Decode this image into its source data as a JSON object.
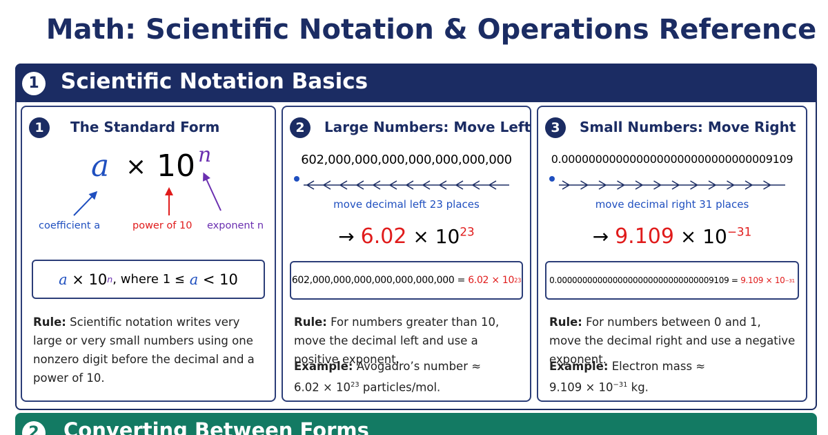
{
  "title": "Math: Scientific Notation & Operations Reference",
  "sections": [
    {
      "number": "1",
      "title": "Scientific Notation Basics",
      "cards": [
        {
          "number": "1",
          "title": "The Standard Form",
          "formula": {
            "coefficient": "a",
            "times": "×",
            "base": "10",
            "exponent": "n"
          },
          "labels": [
            "coefficient a",
            "power of 10",
            "exponent n"
          ],
          "box": {
            "coefficient": "a",
            "times_base": "× 10",
            "exponent": "n",
            "condition_start": ", where 1 ≤",
            "variable": "a",
            "condition_end": "< 10"
          },
          "rule_label": "Rule:",
          "rule": "Scientific notation writes very large or very small numbers using one nonzero digit before the decimal and a power of 10."
        },
        {
          "number": "2",
          "title": "Large Numbers: Move Left",
          "number_text": "602,000,000,000,000,000,000,000",
          "move": "move decimal left 23 places",
          "result": {
            "arrow": "→",
            "mantissa": "6.02",
            "times_base": "× 10",
            "exponent": "23"
          },
          "box": {
            "left": "602,000,000,000,000,000,000,000 =",
            "mantissa": "6.02",
            "times_base": "× 10",
            "exponent": "23"
          },
          "rule_label": "Rule:",
          "rule": "For numbers greater than 10, move the decimal left and use a positive exponent.",
          "example_label": "Example:",
          "example": {
            "text": "Avogadro’s number ≈",
            "mantissa": "6.02 × 10",
            "exponent": "23",
            "unit": "particles/mol."
          }
        },
        {
          "number": "3",
          "title": "Small Numbers: Move Right",
          "number_text": "0.0000000000000000000000000000009109",
          "move": "move decimal right 31 places",
          "result": {
            "arrow": "→",
            "mantissa": "9.109",
            "times_base": "× 10",
            "exponent": "−31"
          },
          "box": {
            "left": "0.0000000000000000000000000000009109 =",
            "mantissa": "9.109",
            "times_base": "× 10",
            "exponent": "−31"
          },
          "rule_label": "Rule:",
          "rule": "For numbers between 0 and 1, move the decimal right and use a negative exponent.",
          "example_label": "Example:",
          "example": {
            "text": "Electron mass ≈",
            "mantissa": "9.109 × 10",
            "exponent": "−31",
            "unit": "kg."
          }
        }
      ]
    },
    {
      "number": "2",
      "title": "Converting Between Forms"
    }
  ]
}
